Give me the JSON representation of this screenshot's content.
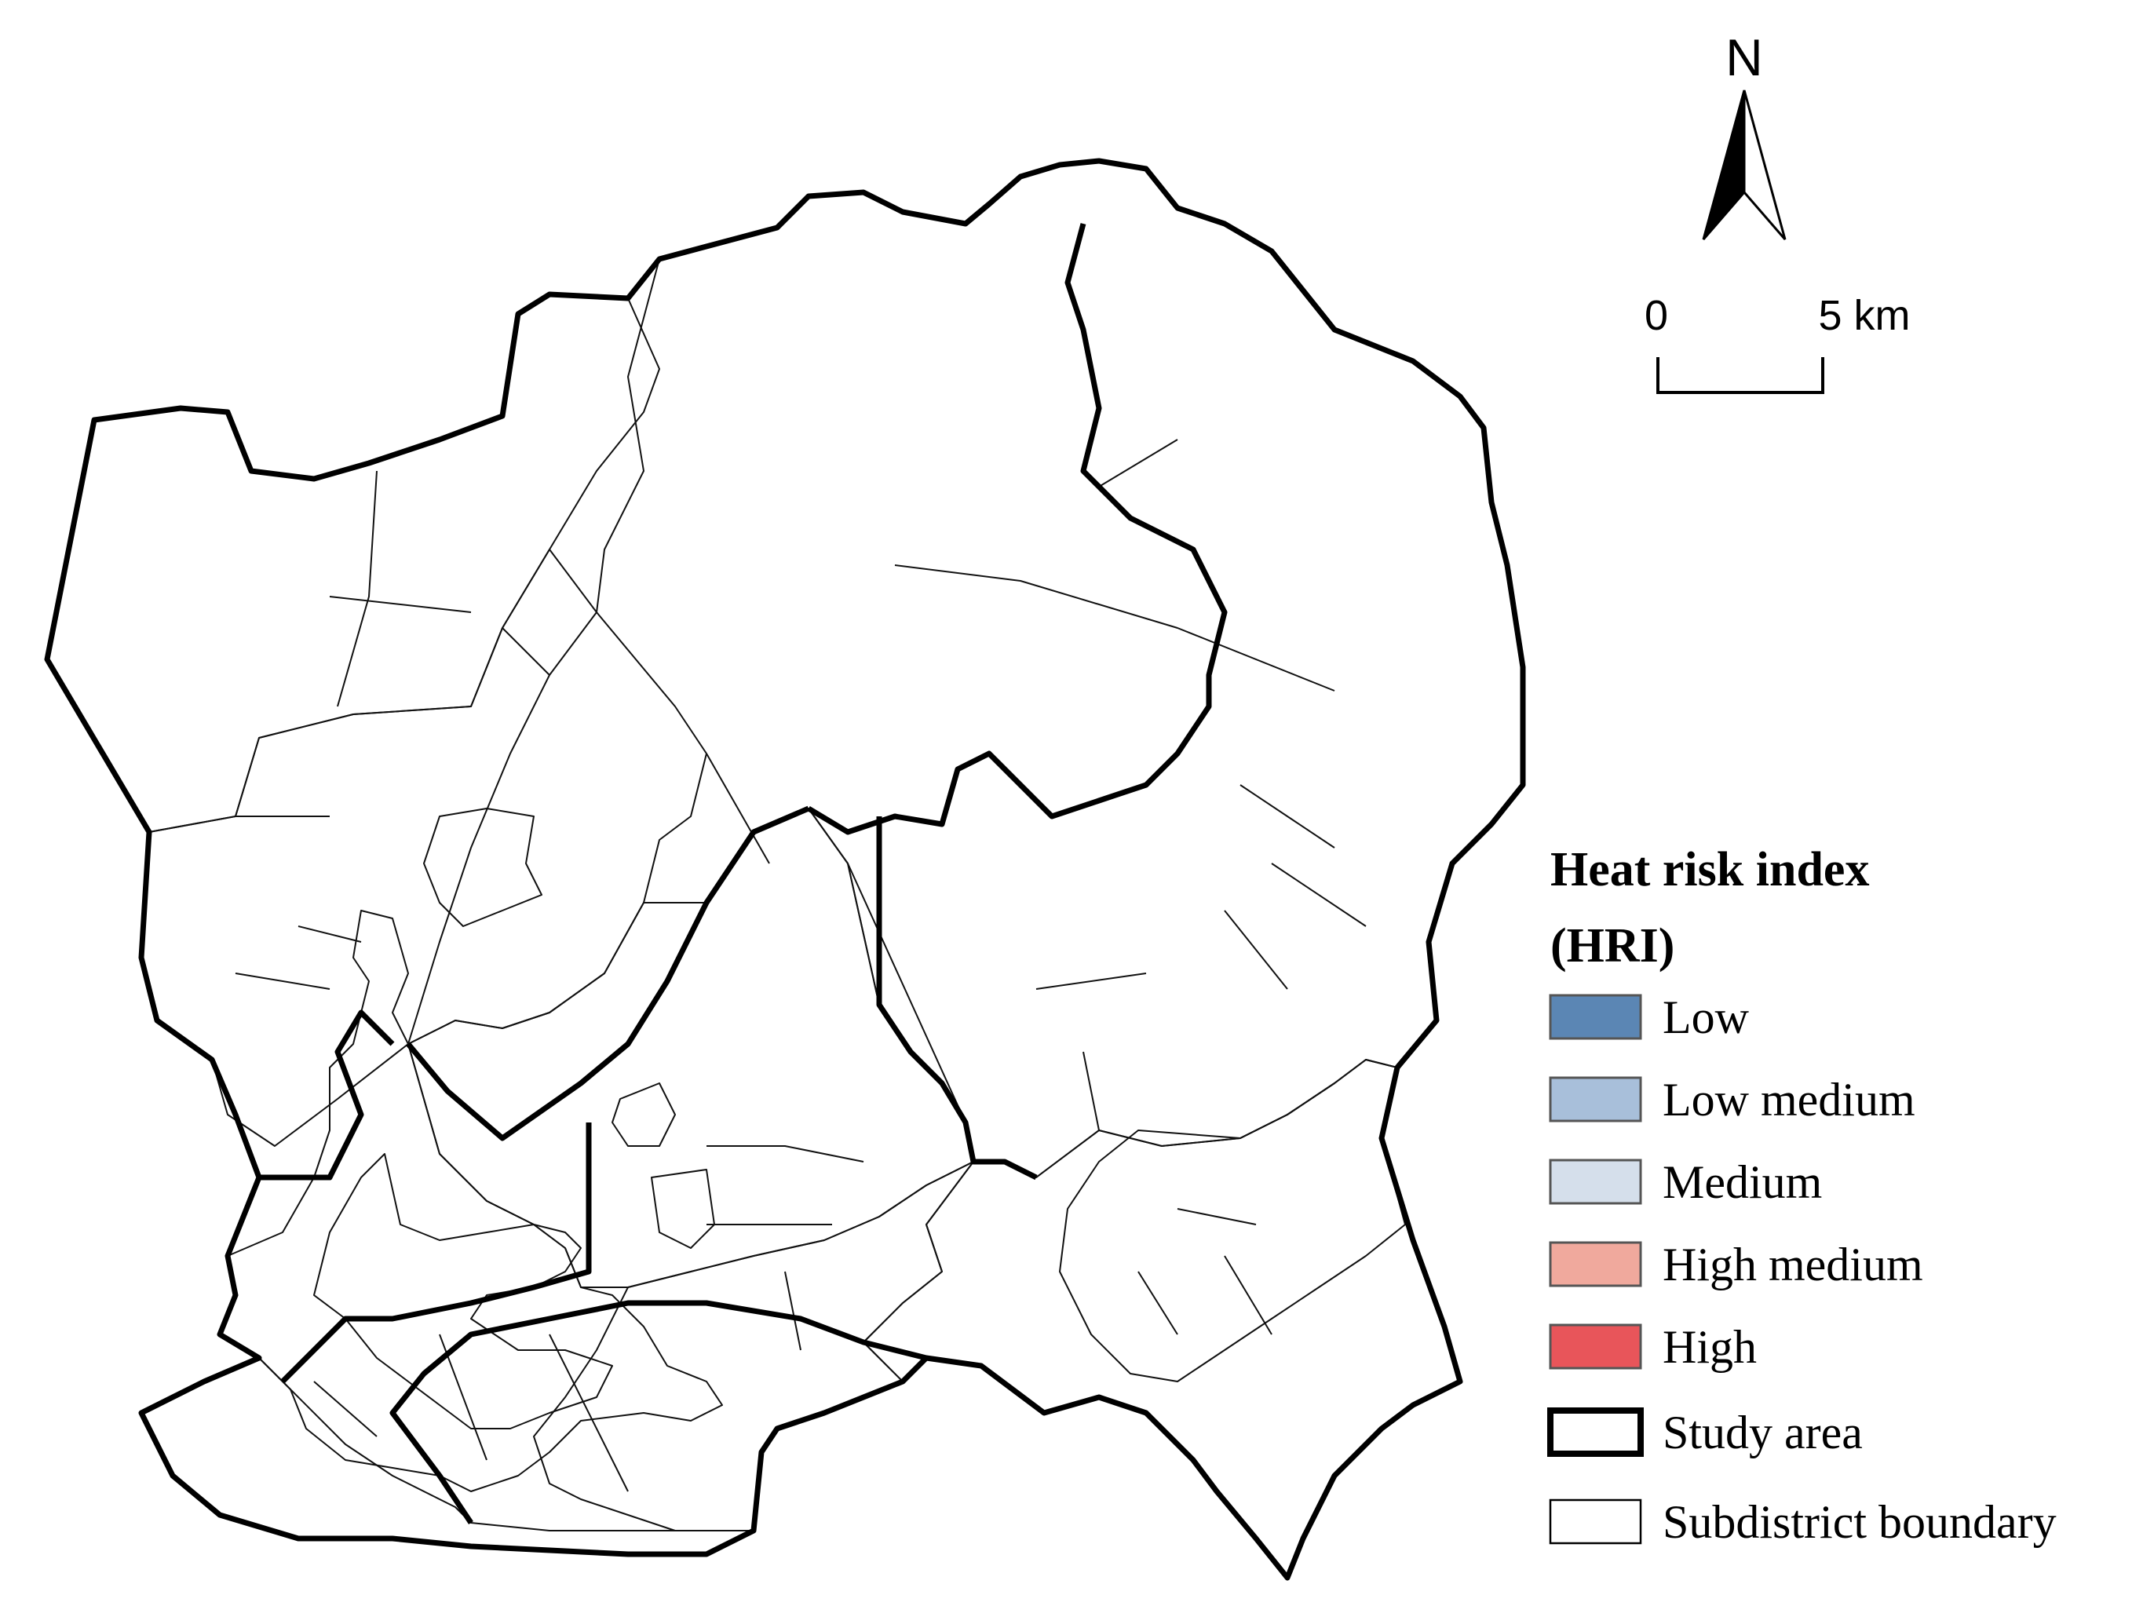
{
  "legend": {
    "title_line1": "Heat risk index",
    "title_line2": "(HRI)",
    "classes": [
      {
        "label": "Low",
        "color": "#5b86b4"
      },
      {
        "label": "Low medium",
        "color": "#a8bfda"
      },
      {
        "label": "Medium",
        "color": "#d5dfeb"
      },
      {
        "label": "High medium",
        "color": "#f0a99d"
      },
      {
        "label": "High",
        "color": "#e8555a"
      }
    ],
    "study_area_label": "Study area",
    "subdistrict_label": "Subdistrict boundary"
  },
  "north_arrow": {
    "label": "N"
  },
  "scale_bar": {
    "start_label": "0",
    "end_label": "5 km"
  }
}
